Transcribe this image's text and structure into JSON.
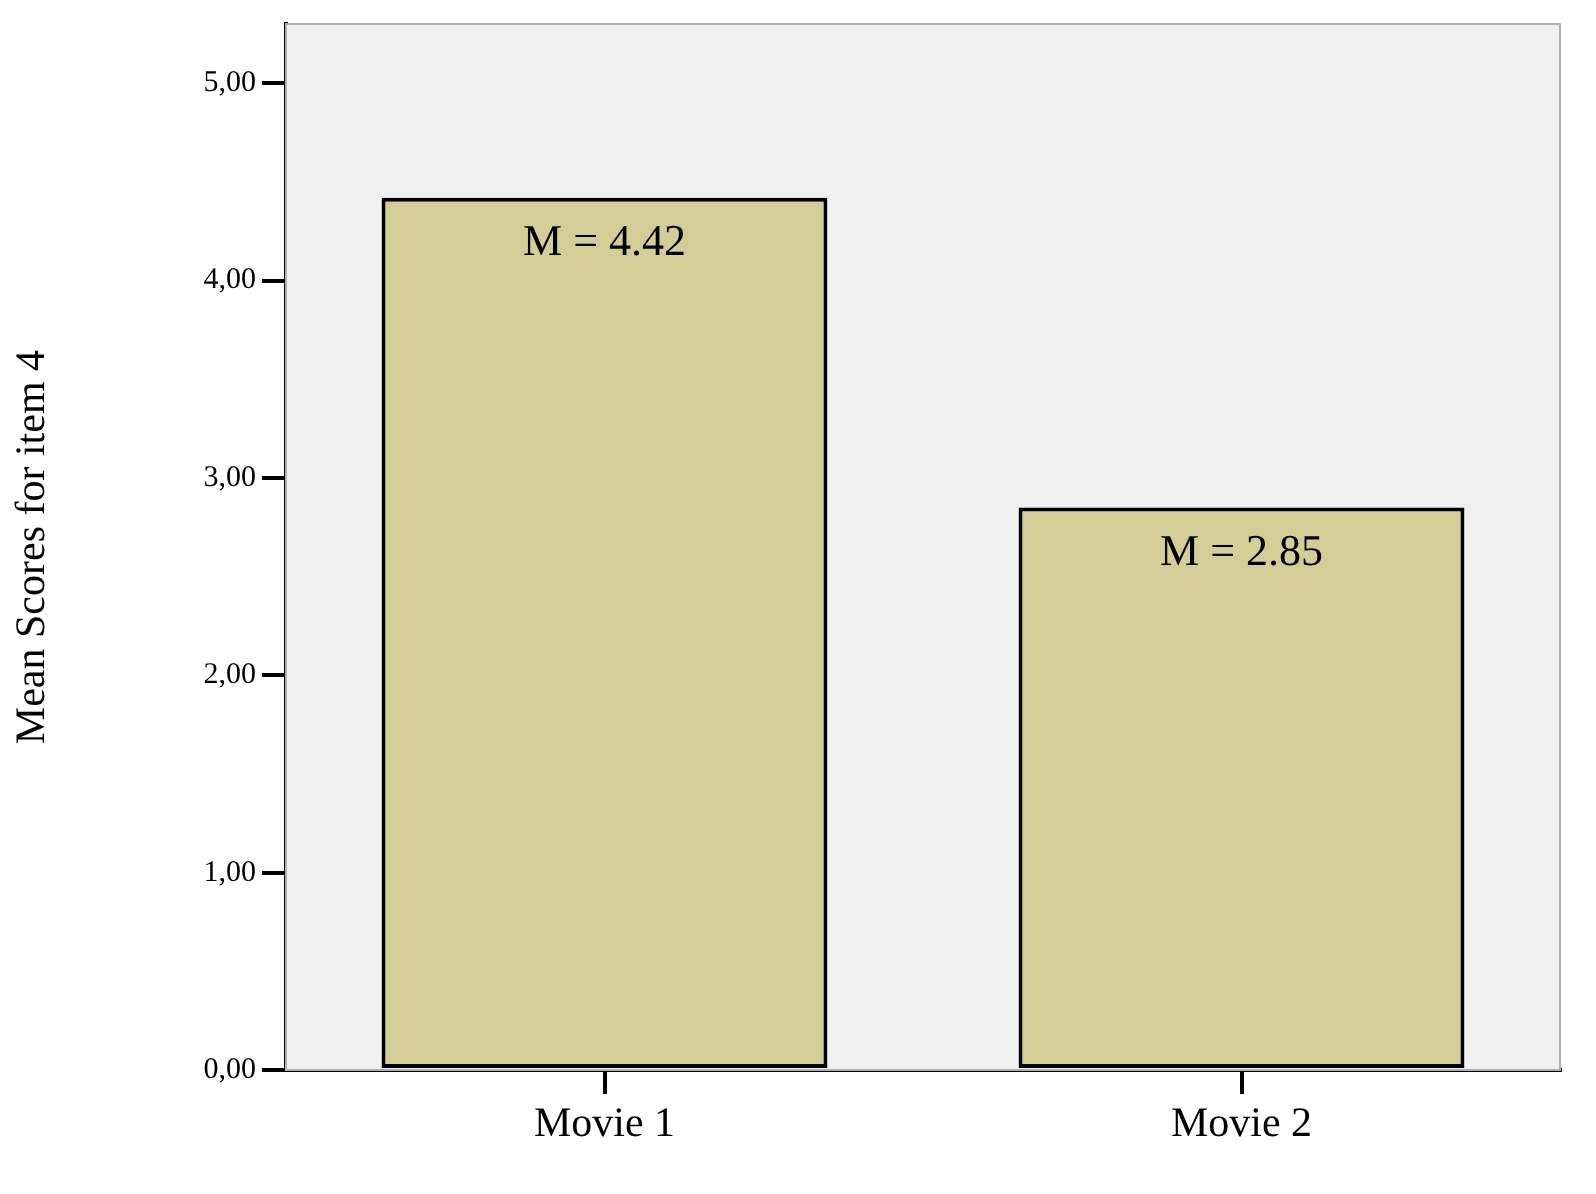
{
  "chart_data": {
    "type": "bar",
    "ylabel": "Mean Scores for item 4",
    "categories": [
      "Movie 1",
      "Movie 2"
    ],
    "values": [
      4.42,
      2.85
    ],
    "color": "#d3ce97",
    "value_labels": [
      "M = 4.42",
      "M = 2.85"
    ],
    "ylim": [
      0,
      5.3
    ],
    "yticks": [
      {
        "value": 0,
        "label": "0,00"
      },
      {
        "value": 1,
        "label": "1,00"
      },
      {
        "value": 2,
        "label": "2,00"
      },
      {
        "value": 3,
        "label": "3,00"
      },
      {
        "value": 4,
        "label": "4,00"
      },
      {
        "value": 5,
        "label": "5,00"
      }
    ],
    "legend": false
  }
}
